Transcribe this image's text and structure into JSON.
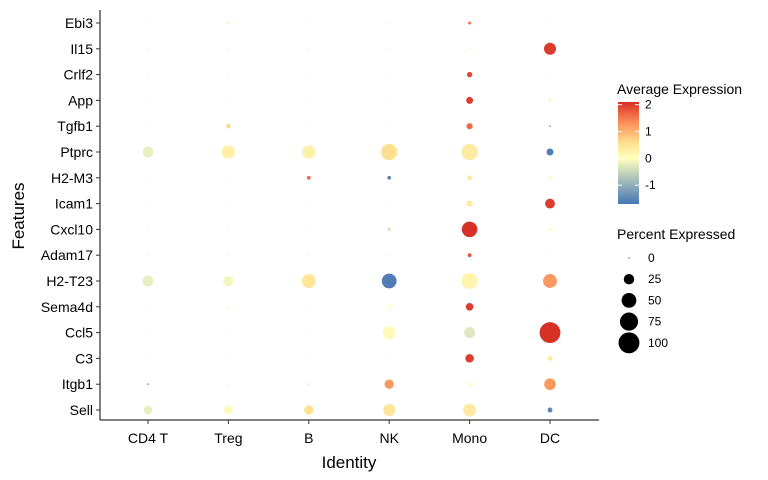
{
  "chart_data": {
    "type": "dotplot",
    "xlabel": "Identity",
    "ylabel": "Features",
    "categories": [
      "CD4 T",
      "Treg",
      "B",
      "NK",
      "Mono",
      "DC"
    ],
    "features": [
      "Ebi3",
      "Il15",
      "Crlf2",
      "App",
      "Tgfb1",
      "Ptprc",
      "H2-M3",
      "Icam1",
      "Cxcl10",
      "Adam17",
      "H2-T23",
      "Sema4d",
      "Ccl5",
      "C3",
      "Itgb1",
      "Sell"
    ],
    "color_legend": {
      "title": "Average Expression",
      "range": [
        -1.7,
        2.1
      ],
      "ticks": [
        2,
        1,
        0,
        -1
      ],
      "tick_labels": [
        "2",
        "1",
        "0",
        "-1"
      ],
      "low_color": "#4575b4",
      "mid_color": "#ffffbf",
      "high_color": "#d73027"
    },
    "size_legend": {
      "title": "Percent Expressed",
      "values": [
        0,
        25,
        50,
        75,
        100
      ],
      "labels": [
        "0",
        "25",
        "50",
        "75",
        "100"
      ]
    },
    "points": [
      {
        "feature": "Ebi3",
        "identity": "CD4 T",
        "pct": 0,
        "avg_exp": 0
      },
      {
        "feature": "Ebi3",
        "identity": "Treg",
        "pct": 1,
        "avg_exp": 0.3
      },
      {
        "feature": "Ebi3",
        "identity": "B",
        "pct": 0,
        "avg_exp": 0
      },
      {
        "feature": "Ebi3",
        "identity": "NK",
        "pct": 0,
        "avg_exp": 0
      },
      {
        "feature": "Ebi3",
        "identity": "Mono",
        "pct": 2,
        "avg_exp": 1.5
      },
      {
        "feature": "Ebi3",
        "identity": "DC",
        "pct": 0,
        "avg_exp": 0
      },
      {
        "feature": "Il15",
        "identity": "CD4 T",
        "pct": 0,
        "avg_exp": 0
      },
      {
        "feature": "Il15",
        "identity": "Treg",
        "pct": 0,
        "avg_exp": 0
      },
      {
        "feature": "Il15",
        "identity": "B",
        "pct": 0,
        "avg_exp": 0
      },
      {
        "feature": "Il15",
        "identity": "NK",
        "pct": 0,
        "avg_exp": 0
      },
      {
        "feature": "Il15",
        "identity": "Mono",
        "pct": 1,
        "avg_exp": 0.1
      },
      {
        "feature": "Il15",
        "identity": "DC",
        "pct": 30,
        "avg_exp": 2.0
      },
      {
        "feature": "Crlf2",
        "identity": "CD4 T",
        "pct": 0,
        "avg_exp": 0
      },
      {
        "feature": "Crlf2",
        "identity": "Treg",
        "pct": 0,
        "avg_exp": 0
      },
      {
        "feature": "Crlf2",
        "identity": "B",
        "pct": 0,
        "avg_exp": 0
      },
      {
        "feature": "Crlf2",
        "identity": "NK",
        "pct": 0,
        "avg_exp": 0
      },
      {
        "feature": "Crlf2",
        "identity": "Mono",
        "pct": 6,
        "avg_exp": 1.9
      },
      {
        "feature": "Crlf2",
        "identity": "DC",
        "pct": 0,
        "avg_exp": -0.5
      },
      {
        "feature": "App",
        "identity": "CD4 T",
        "pct": 0,
        "avg_exp": 0
      },
      {
        "feature": "App",
        "identity": "Treg",
        "pct": 0,
        "avg_exp": 0
      },
      {
        "feature": "App",
        "identity": "B",
        "pct": 0,
        "avg_exp": 0
      },
      {
        "feature": "App",
        "identity": "NK",
        "pct": 0,
        "avg_exp": 0
      },
      {
        "feature": "App",
        "identity": "Mono",
        "pct": 10,
        "avg_exp": 2.0
      },
      {
        "feature": "App",
        "identity": "DC",
        "pct": 2,
        "avg_exp": 0.2
      },
      {
        "feature": "Tgfb1",
        "identity": "CD4 T",
        "pct": 0,
        "avg_exp": 0
      },
      {
        "feature": "Tgfb1",
        "identity": "Treg",
        "pct": 4,
        "avg_exp": 0.7
      },
      {
        "feature": "Tgfb1",
        "identity": "B",
        "pct": 0,
        "avg_exp": 0
      },
      {
        "feature": "Tgfb1",
        "identity": "NK",
        "pct": 0,
        "avg_exp": 0
      },
      {
        "feature": "Tgfb1",
        "identity": "Mono",
        "pct": 8,
        "avg_exp": 1.6
      },
      {
        "feature": "Tgfb1",
        "identity": "DC",
        "pct": 1,
        "avg_exp": -0.8
      },
      {
        "feature": "Ptprc",
        "identity": "CD4 T",
        "pct": 25,
        "avg_exp": -0.2
      },
      {
        "feature": "Ptprc",
        "identity": "Treg",
        "pct": 38,
        "avg_exp": 0.3
      },
      {
        "feature": "Ptprc",
        "identity": "B",
        "pct": 35,
        "avg_exp": 0.3
      },
      {
        "feature": "Ptprc",
        "identity": "NK",
        "pct": 55,
        "avg_exp": 0.6
      },
      {
        "feature": "Ptprc",
        "identity": "Mono",
        "pct": 55,
        "avg_exp": 0.4
      },
      {
        "feature": "Ptprc",
        "identity": "DC",
        "pct": 10,
        "avg_exp": -1.6
      },
      {
        "feature": "H2-M3",
        "identity": "CD4 T",
        "pct": 0,
        "avg_exp": 0
      },
      {
        "feature": "H2-M3",
        "identity": "Treg",
        "pct": 0,
        "avg_exp": 0
      },
      {
        "feature": "H2-M3",
        "identity": "B",
        "pct": 3,
        "avg_exp": 1.6
      },
      {
        "feature": "H2-M3",
        "identity": "NK",
        "pct": 3,
        "avg_exp": -1.5
      },
      {
        "feature": "H2-M3",
        "identity": "Mono",
        "pct": 5,
        "avg_exp": 0.4
      },
      {
        "feature": "H2-M3",
        "identity": "DC",
        "pct": 2,
        "avg_exp": 0.1
      },
      {
        "feature": "Icam1",
        "identity": "CD4 T",
        "pct": 0,
        "avg_exp": 0
      },
      {
        "feature": "Icam1",
        "identity": "Treg",
        "pct": 0,
        "avg_exp": 0
      },
      {
        "feature": "Icam1",
        "identity": "B",
        "pct": 0,
        "avg_exp": 0
      },
      {
        "feature": "Icam1",
        "identity": "NK",
        "pct": 0,
        "avg_exp": 0
      },
      {
        "feature": "Icam1",
        "identity": "Mono",
        "pct": 8,
        "avg_exp": 0.4
      },
      {
        "feature": "Icam1",
        "identity": "DC",
        "pct": 20,
        "avg_exp": 2.0
      },
      {
        "feature": "Cxcl10",
        "identity": "CD4 T",
        "pct": 0,
        "avg_exp": 0
      },
      {
        "feature": "Cxcl10",
        "identity": "Treg",
        "pct": 0,
        "avg_exp": 0
      },
      {
        "feature": "Cxcl10",
        "identity": "B",
        "pct": 0,
        "avg_exp": 0
      },
      {
        "feature": "Cxcl10",
        "identity": "NK",
        "pct": 3,
        "avg_exp": -0.3
      },
      {
        "feature": "Cxcl10",
        "identity": "Mono",
        "pct": 50,
        "avg_exp": 2.1
      },
      {
        "feature": "Cxcl10",
        "identity": "DC",
        "pct": 2,
        "avg_exp": 0.1
      },
      {
        "feature": "Adam17",
        "identity": "CD4 T",
        "pct": 0,
        "avg_exp": 0
      },
      {
        "feature": "Adam17",
        "identity": "Treg",
        "pct": 0,
        "avg_exp": 0
      },
      {
        "feature": "Adam17",
        "identity": "B",
        "pct": 0,
        "avg_exp": 0
      },
      {
        "feature": "Adam17",
        "identity": "NK",
        "pct": 0,
        "avg_exp": 0
      },
      {
        "feature": "Adam17",
        "identity": "Mono",
        "pct": 3,
        "avg_exp": 1.8
      },
      {
        "feature": "Adam17",
        "identity": "DC",
        "pct": 0,
        "avg_exp": 0
      },
      {
        "feature": "H2-T23",
        "identity": "CD4 T",
        "pct": 25,
        "avg_exp": -0.2
      },
      {
        "feature": "H2-T23",
        "identity": "Treg",
        "pct": 22,
        "avg_exp": -0.1
      },
      {
        "feature": "H2-T23",
        "identity": "B",
        "pct": 40,
        "avg_exp": 0.5
      },
      {
        "feature": "H2-T23",
        "identity": "NK",
        "pct": 45,
        "avg_exp": -1.6
      },
      {
        "feature": "H2-T23",
        "identity": "Mono",
        "pct": 55,
        "avg_exp": 0.2
      },
      {
        "feature": "H2-T23",
        "identity": "DC",
        "pct": 40,
        "avg_exp": 1.2
      },
      {
        "feature": "Sema4d",
        "identity": "CD4 T",
        "pct": 0,
        "avg_exp": 0
      },
      {
        "feature": "Sema4d",
        "identity": "Treg",
        "pct": 1,
        "avg_exp": 0.2
      },
      {
        "feature": "Sema4d",
        "identity": "B",
        "pct": 0,
        "avg_exp": 0
      },
      {
        "feature": "Sema4d",
        "identity": "NK",
        "pct": 3,
        "avg_exp": 0
      },
      {
        "feature": "Sema4d",
        "identity": "Mono",
        "pct": 12,
        "avg_exp": 2.0
      },
      {
        "feature": "Sema4d",
        "identity": "DC",
        "pct": 0,
        "avg_exp": 0
      },
      {
        "feature": "Ccl5",
        "identity": "CD4 T",
        "pct": 0,
        "avg_exp": 0
      },
      {
        "feature": "Ccl5",
        "identity": "Treg",
        "pct": 0,
        "avg_exp": 0
      },
      {
        "feature": "Ccl5",
        "identity": "B",
        "pct": 0,
        "avg_exp": 0
      },
      {
        "feature": "Ccl5",
        "identity": "NK",
        "pct": 35,
        "avg_exp": 0.1
      },
      {
        "feature": "Ccl5",
        "identity": "Mono",
        "pct": 25,
        "avg_exp": -0.3
      },
      {
        "feature": "Ccl5",
        "identity": "DC",
        "pct": 90,
        "avg_exp": 2.1
      },
      {
        "feature": "C3",
        "identity": "CD4 T",
        "pct": 0,
        "avg_exp": 0
      },
      {
        "feature": "C3",
        "identity": "Treg",
        "pct": 0,
        "avg_exp": 0
      },
      {
        "feature": "C3",
        "identity": "B",
        "pct": 0,
        "avg_exp": 0
      },
      {
        "feature": "C3",
        "identity": "NK",
        "pct": 0,
        "avg_exp": 0
      },
      {
        "feature": "C3",
        "identity": "Mono",
        "pct": 15,
        "avg_exp": 2.0
      },
      {
        "feature": "C3",
        "identity": "DC",
        "pct": 5,
        "avg_exp": 0.4
      },
      {
        "feature": "Itgb1",
        "identity": "CD4 T",
        "pct": 1,
        "avg_exp": -0.8
      },
      {
        "feature": "Itgb1",
        "identity": "Treg",
        "pct": 0,
        "avg_exp": 0
      },
      {
        "feature": "Itgb1",
        "identity": "B",
        "pct": 1,
        "avg_exp": -0.2
      },
      {
        "feature": "Itgb1",
        "identity": "NK",
        "pct": 18,
        "avg_exp": 1.2
      },
      {
        "feature": "Itgb1",
        "identity": "Mono",
        "pct": 2,
        "avg_exp": 0.1
      },
      {
        "feature": "Itgb1",
        "identity": "DC",
        "pct": 28,
        "avg_exp": 1.2
      },
      {
        "feature": "Sell",
        "identity": "CD4 T",
        "pct": 15,
        "avg_exp": -0.2
      },
      {
        "feature": "Sell",
        "identity": "Treg",
        "pct": 15,
        "avg_exp": 0.1
      },
      {
        "feature": "Sell",
        "identity": "B",
        "pct": 18,
        "avg_exp": 0.6
      },
      {
        "feature": "Sell",
        "identity": "NK",
        "pct": 30,
        "avg_exp": 0.5
      },
      {
        "feature": "Sell",
        "identity": "Mono",
        "pct": 35,
        "avg_exp": 0.4
      },
      {
        "feature": "Sell",
        "identity": "DC",
        "pct": 5,
        "avg_exp": -1.5
      }
    ]
  }
}
